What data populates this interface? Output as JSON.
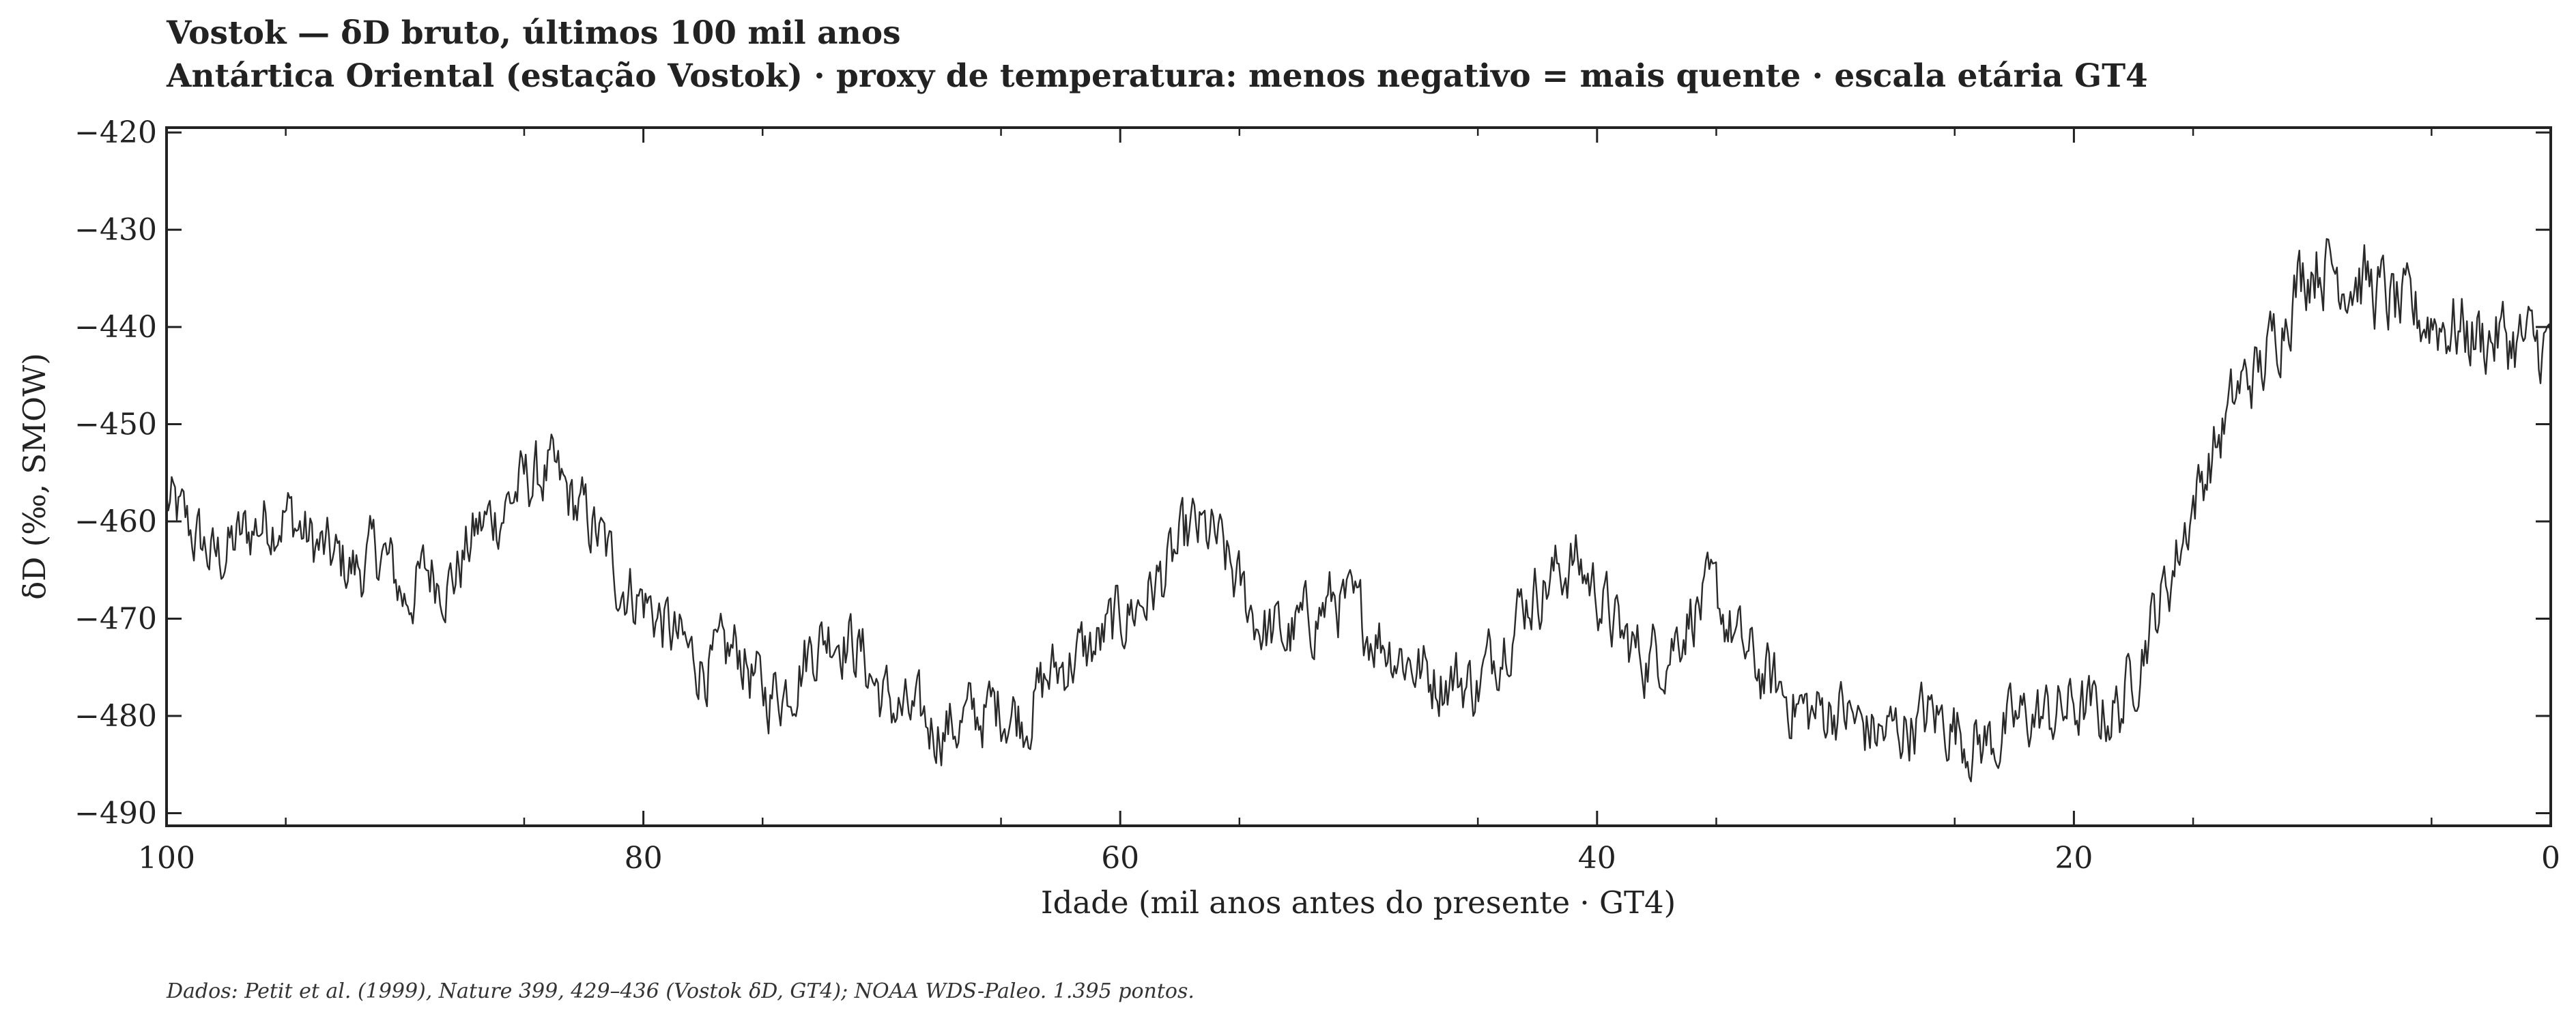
{
  "chart_data": {
    "type": "line",
    "title": "Vostok — δD bruto, últimos 100 mil anos",
    "subtitle": "Antártica Oriental (estação Vostok) · proxy de temperatura: menos negativo = mais quente · escala etária GT4",
    "xlabel": "Idade (mil anos antes do presente · GT4)",
    "ylabel": "δD (‰, SMOW)",
    "xlim": [
      100,
      0
    ],
    "ylim": [
      -491.3,
      -419.5
    ],
    "x_axis_reversed": true,
    "xticks": [
      100,
      80,
      60,
      40,
      20,
      0
    ],
    "yticks": [
      -420,
      -430,
      -440,
      -450,
      -460,
      -470,
      -480,
      -490
    ],
    "xtick_labels": [
      "100",
      "80",
      "60",
      "40",
      "20",
      "0"
    ],
    "ytick_labels": [
      "−420",
      "−430",
      "−440",
      "−450",
      "−460",
      "−470",
      "−480",
      "−490"
    ],
    "grid": false,
    "line_color": "#2a2a2a",
    "series": [
      {
        "point_count_stated": 1395,
        "x": [
          100,
          99,
          98,
          97,
          96,
          95,
          94,
          93,
          92,
          91,
          90,
          89,
          88,
          87,
          86,
          85,
          84,
          83,
          82,
          81,
          80,
          79,
          78,
          77,
          76,
          75,
          74,
          73,
          72,
          71,
          70,
          69,
          68,
          67,
          66,
          65,
          64,
          63,
          62,
          61,
          60,
          59,
          58,
          57,
          56,
          55,
          54,
          53,
          52,
          51,
          50,
          49,
          48,
          47,
          46,
          45,
          44,
          43,
          42,
          41,
          40,
          39,
          38,
          37,
          36,
          35,
          34,
          33,
          32,
          31,
          30,
          29,
          28,
          27,
          26,
          25,
          24,
          23,
          22,
          21,
          20,
          19,
          18,
          17,
          16,
          15,
          14,
          13,
          12,
          11,
          10,
          9,
          8,
          7,
          6,
          5,
          4,
          3,
          2,
          1,
          0
        ],
        "y": [
          -458,
          -461,
          -464,
          -462,
          -460,
          -459,
          -462,
          -464,
          -465,
          -463,
          -468,
          -465,
          -466,
          -461,
          -459,
          -456,
          -455,
          -458,
          -461,
          -466,
          -468,
          -471,
          -474,
          -475,
          -473,
          -478,
          -477,
          -473,
          -471,
          -473,
          -478,
          -480,
          -481,
          -481,
          -480,
          -479,
          -480,
          -476,
          -474,
          -473,
          -470,
          -468,
          -465,
          -461,
          -462,
          -467,
          -471,
          -472,
          -470,
          -468,
          -470,
          -472,
          -474,
          -476,
          -476,
          -477,
          -472,
          -468,
          -466,
          -464,
          -467,
          -472,
          -474,
          -473,
          -469,
          -468,
          -473,
          -476,
          -478,
          -480,
          -479,
          -481,
          -482,
          -481,
          -480,
          -481,
          -483,
          -482,
          -480,
          -480,
          -479,
          -480,
          -479,
          -472,
          -466,
          -458,
          -452,
          -446,
          -444,
          -437,
          -433,
          -434,
          -435,
          -437,
          -439,
          -439,
          -440,
          -441,
          -441,
          -442,
          -442
        ]
      }
    ],
    "source_note": "Dados: Petit et al. (1999), Nature 399, 429–436 (Vostok δD, GT4); NOAA WDS-Paleo. 1.395 pontos."
  }
}
